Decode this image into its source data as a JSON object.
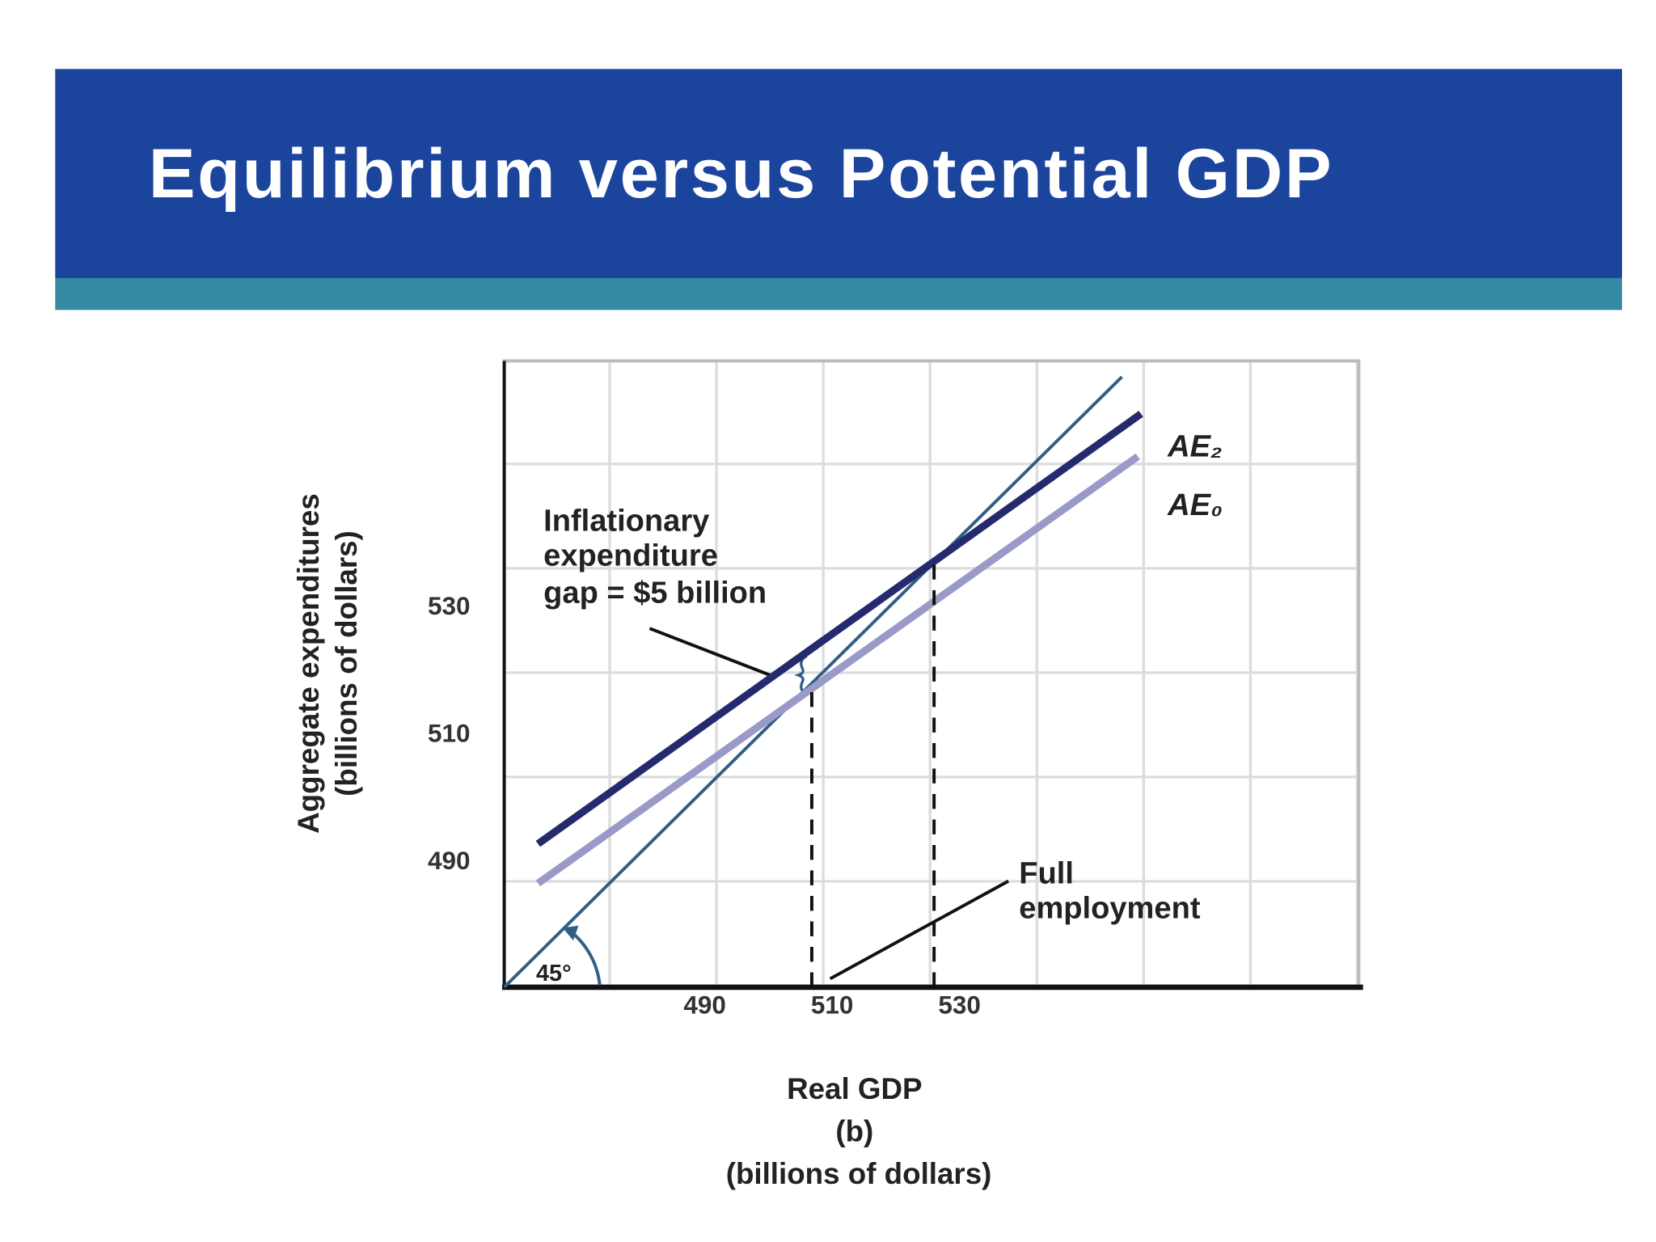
{
  "chart_data": {
    "type": "line",
    "title": "Equilibrium versus Potential GDP",
    "subtitle": "(b)",
    "xlabel": "Real GDP",
    "xunit": "(billions of dollars)",
    "ylabel": "Aggregate expenditures",
    "yunit": "(billions of dollars)",
    "xlim": [
      458.5,
      592.7
    ],
    "ylim": [
      470,
      568.3
    ],
    "xticks": [
      490,
      510,
      530
    ],
    "yticks": [
      490,
      510,
      530
    ],
    "series": [
      {
        "x": [
          458.5,
          555.5
        ],
        "values": [
          470,
          565.8
        ],
        "color": "#2f5f86",
        "width": 3
      },
      {
        "name": "AE₂",
        "x": [
          463.8,
          558.5
        ],
        "values": [
          492.5,
          560
        ],
        "color": "#252a6e",
        "width": 7
      },
      {
        "name": "AE₀",
        "x": [
          463.8,
          558
        ],
        "values": [
          486.3,
          553.3
        ],
        "color": "#9a9ac8",
        "width": 7
      },
      {
        "x": [
          506.8,
          506.8
        ],
        "values": [
          470,
          517.5
        ],
        "color": "#111111",
        "width": 3,
        "dashed": true
      },
      {
        "x": [
          526,
          526
        ],
        "values": [
          470,
          536.7
        ],
        "color": "#111111",
        "width": 3,
        "dashed": true
      }
    ],
    "annotations": {
      "gap": [
        "Inflationary",
        "expenditure",
        "gap = $5 billion"
      ],
      "full_employment": [
        "Full",
        "employment"
      ],
      "angle": "45°"
    }
  }
}
